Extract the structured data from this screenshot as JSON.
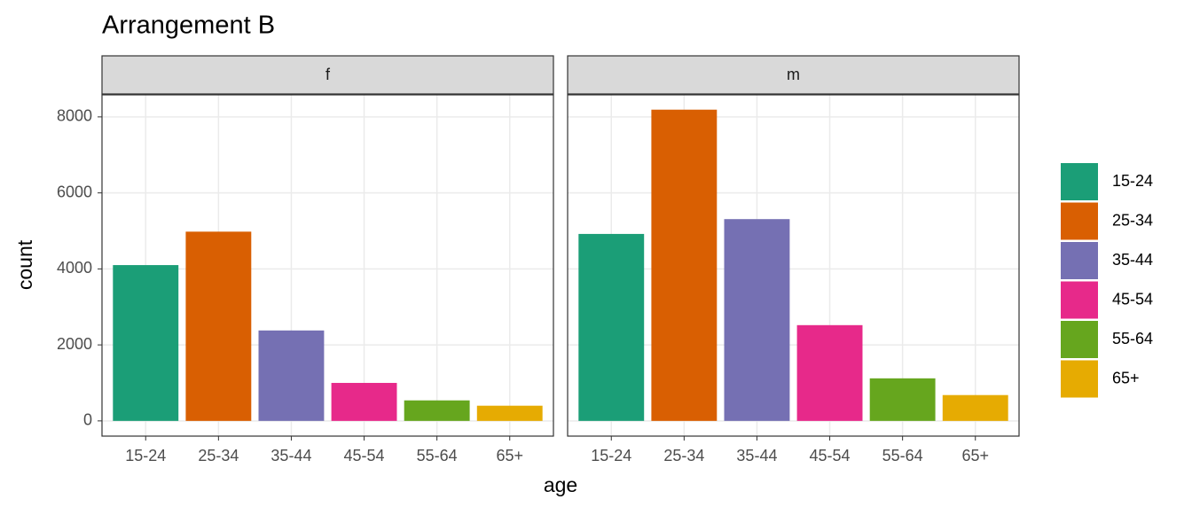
{
  "chart_data": {
    "type": "bar",
    "title": "Arrangement B",
    "xlabel": "age",
    "ylabel": "count",
    "categories": [
      "15-24",
      "25-34",
      "35-44",
      "45-54",
      "55-64",
      "65+"
    ],
    "colors": [
      "#1b9e77",
      "#d95f02",
      "#7570b3",
      "#e7298a",
      "#66a61e",
      "#e6ab02"
    ],
    "series": [
      {
        "name": "f",
        "values": [
          4100,
          4980,
          2380,
          1000,
          540,
          400
        ]
      },
      {
        "name": "m",
        "values": [
          4920,
          8190,
          5310,
          2520,
          1120,
          680
        ]
      }
    ],
    "ylim": [
      -400,
      8580
    ],
    "yticks": [
      0,
      2000,
      4000,
      6000,
      8000
    ],
    "grid": true,
    "legend": "right"
  }
}
